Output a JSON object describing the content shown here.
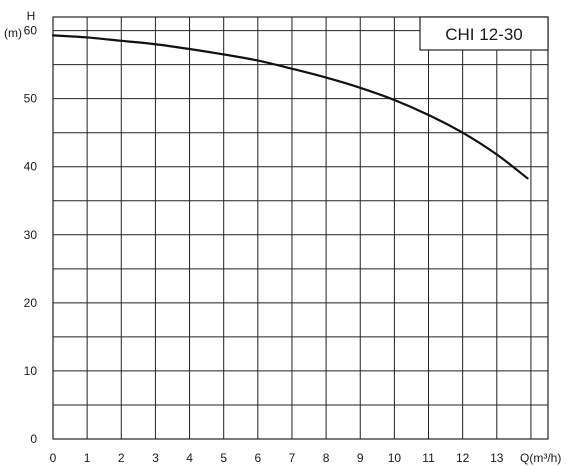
{
  "chart_data": {
    "type": "line",
    "legend_label": "CHI 12-30",
    "legend_position": "top-right",
    "ylabel_symbol": "H",
    "ylabel_unit": "(m)",
    "xlabel": "Q(m³/h)",
    "xlim": [
      0,
      14.5
    ],
    "ylim": [
      0,
      62
    ],
    "grid": true,
    "x_ticks": [
      0,
      1,
      2,
      3,
      4,
      5,
      6,
      7,
      8,
      9,
      10,
      11,
      12,
      13
    ],
    "y_ticks": [
      0,
      10,
      20,
      30,
      40,
      50,
      60
    ],
    "series": [
      {
        "x": [
          0,
          1,
          2,
          3,
          4,
          5,
          6,
          7,
          8,
          9,
          10,
          11,
          12,
          13,
          13.9
        ],
        "y": [
          59.3,
          59.0,
          58.5,
          58.0,
          57.3,
          56.5,
          55.6,
          54.4,
          53.1,
          51.6,
          49.8,
          47.6,
          45.0,
          41.8,
          38.3
        ]
      }
    ]
  }
}
